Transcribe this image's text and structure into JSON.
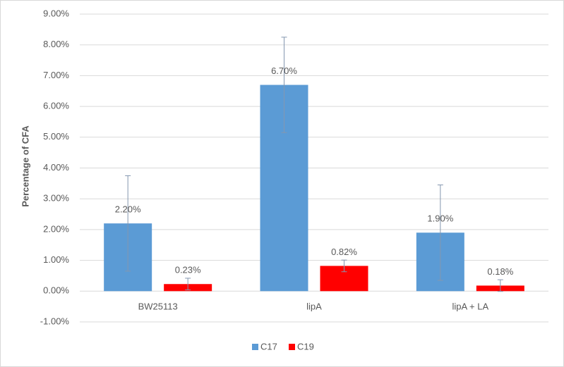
{
  "chart_data": {
    "type": "bar",
    "y_label": "Percentage of CFA",
    "categories": [
      "BW25113",
      "lipA",
      "lipA + LA"
    ],
    "series": [
      {
        "name": "C17",
        "color": "#5b9bd5",
        "values": [
          2.2,
          6.7,
          1.9
        ],
        "value_labels": [
          "2.20%",
          "6.70%",
          "1.90%"
        ],
        "errors": [
          1.55,
          1.55,
          1.55
        ]
      },
      {
        "name": "C19",
        "color": "#ff0000",
        "values": [
          0.23,
          0.82,
          0.18
        ],
        "value_labels": [
          "0.23%",
          "0.82%",
          "0.18%"
        ],
        "errors": [
          0.19,
          0.19,
          0.19
        ]
      }
    ],
    "ylim": [
      -1,
      9
    ],
    "yticks": [
      {
        "value": -1,
        "label": "-1.00%"
      },
      {
        "value": 0,
        "label": "0.00%"
      },
      {
        "value": 1,
        "label": "1.00%"
      },
      {
        "value": 2,
        "label": "2.00%"
      },
      {
        "value": 3,
        "label": "3.00%"
      },
      {
        "value": 4,
        "label": "4.00%"
      },
      {
        "value": 5,
        "label": "5.00%"
      },
      {
        "value": 6,
        "label": "6.00%"
      },
      {
        "value": 7,
        "label": "7.00%"
      },
      {
        "value": 8,
        "label": "8.00%"
      },
      {
        "value": 9,
        "label": "9.00%"
      }
    ],
    "grid": true,
    "legend": "bottom"
  }
}
